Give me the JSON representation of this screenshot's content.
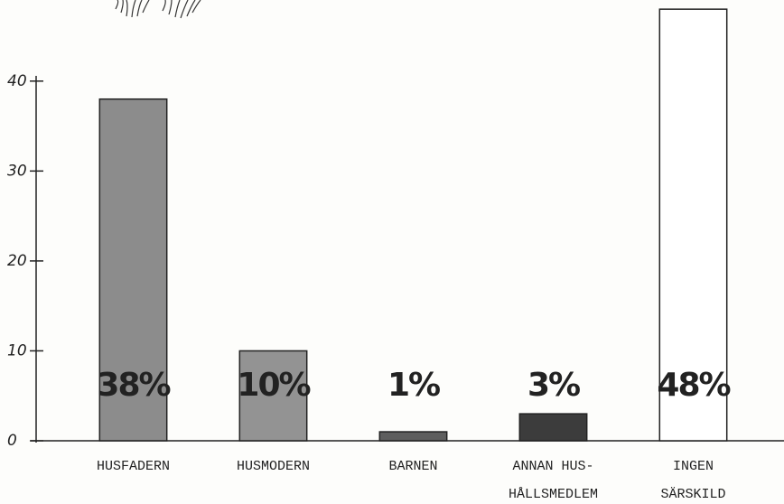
{
  "chart_data": {
    "type": "bar",
    "categories": [
      [
        "HUSFADERN"
      ],
      [
        "HUSMODERN"
      ],
      [
        "BARNEN"
      ],
      [
        "ANNAN HUS-",
        "HÅLLSMEDLEM"
      ],
      [
        "INGEN",
        "SÄRSKILD"
      ]
    ],
    "values": [
      38,
      10,
      1,
      3,
      48
    ],
    "value_labels": [
      "38%",
      "10%",
      "1%",
      "3%",
      "48%"
    ],
    "colors": [
      "#8c8c8c",
      "#939393",
      "#5e5e5e",
      "#3c3c3c",
      "#ffffff"
    ],
    "ylim": [
      0,
      49
    ],
    "yticks": [
      0,
      10,
      20,
      30,
      40
    ]
  }
}
